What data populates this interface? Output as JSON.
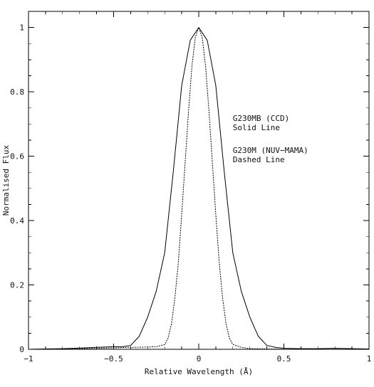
{
  "chart_data": {
    "type": "line",
    "title": "",
    "xlabel": "Relative Wavelength (Å)",
    "ylabel": "Normalised Flux",
    "xlim": [
      -1,
      1
    ],
    "ylim": [
      0,
      1.0
    ],
    "grid": false,
    "x_ticks": [
      -1,
      -0.5,
      0,
      0.5,
      1
    ],
    "x_tick_labels": [
      "−1",
      "−0.5",
      "0",
      "0.5",
      "1"
    ],
    "y_ticks": [
      0,
      0.2,
      0.4,
      0.6,
      0.8,
      1.0
    ],
    "y_tick_labels": [
      "0",
      "0.2",
      "0.4",
      "0.6",
      "0.8",
      "1"
    ],
    "annotations": [
      {
        "lines": [
          "G230MB (CCD)",
          "Solid Line"
        ],
        "x": 0.2,
        "y": 0.71
      },
      {
        "lines": [
          "G230M (NUV−MAMA)",
          "Dashed Line"
        ],
        "x": 0.2,
        "y": 0.61
      }
    ],
    "series": [
      {
        "color": "#000000",
        "dash": "solid",
        "x": [
          -1.0,
          -0.9,
          -0.8,
          -0.7,
          -0.6,
          -0.5,
          -0.45,
          -0.4,
          -0.35,
          -0.3,
          -0.25,
          -0.2,
          -0.15,
          -0.1,
          -0.05,
          0.0,
          0.05,
          0.1,
          0.15,
          0.2,
          0.25,
          0.3,
          0.35,
          0.4,
          0.45,
          0.5,
          0.6,
          0.7,
          0.8,
          0.9,
          1.0
        ],
        "y": [
          0.0,
          0.001,
          0.002,
          0.004,
          0.006,
          0.008,
          0.008,
          0.012,
          0.04,
          0.1,
          0.18,
          0.3,
          0.55,
          0.82,
          0.96,
          1.0,
          0.96,
          0.82,
          0.55,
          0.3,
          0.18,
          0.1,
          0.04,
          0.012,
          0.006,
          0.003,
          0.002,
          0.002,
          0.003,
          0.002,
          0.001
        ]
      },
      {
        "color": "#000000",
        "dash": "dotted",
        "x": [
          -1.0,
          -0.8,
          -0.6,
          -0.4,
          -0.3,
          -0.25,
          -0.2,
          -0.18,
          -0.16,
          -0.14,
          -0.12,
          -0.1,
          -0.08,
          -0.06,
          -0.04,
          -0.02,
          0.0,
          0.02,
          0.04,
          0.06,
          0.08,
          0.1,
          0.12,
          0.14,
          0.16,
          0.18,
          0.2,
          0.25,
          0.3,
          0.4,
          0.6,
          0.8,
          1.0
        ],
        "y": [
          0.0,
          0.001,
          0.003,
          0.006,
          0.007,
          0.008,
          0.015,
          0.035,
          0.08,
          0.16,
          0.27,
          0.42,
          0.58,
          0.74,
          0.88,
          0.97,
          1.0,
          0.97,
          0.88,
          0.74,
          0.58,
          0.42,
          0.27,
          0.16,
          0.08,
          0.035,
          0.015,
          0.006,
          0.002,
          0.001,
          0.0,
          0.0,
          0.0
        ]
      }
    ]
  }
}
